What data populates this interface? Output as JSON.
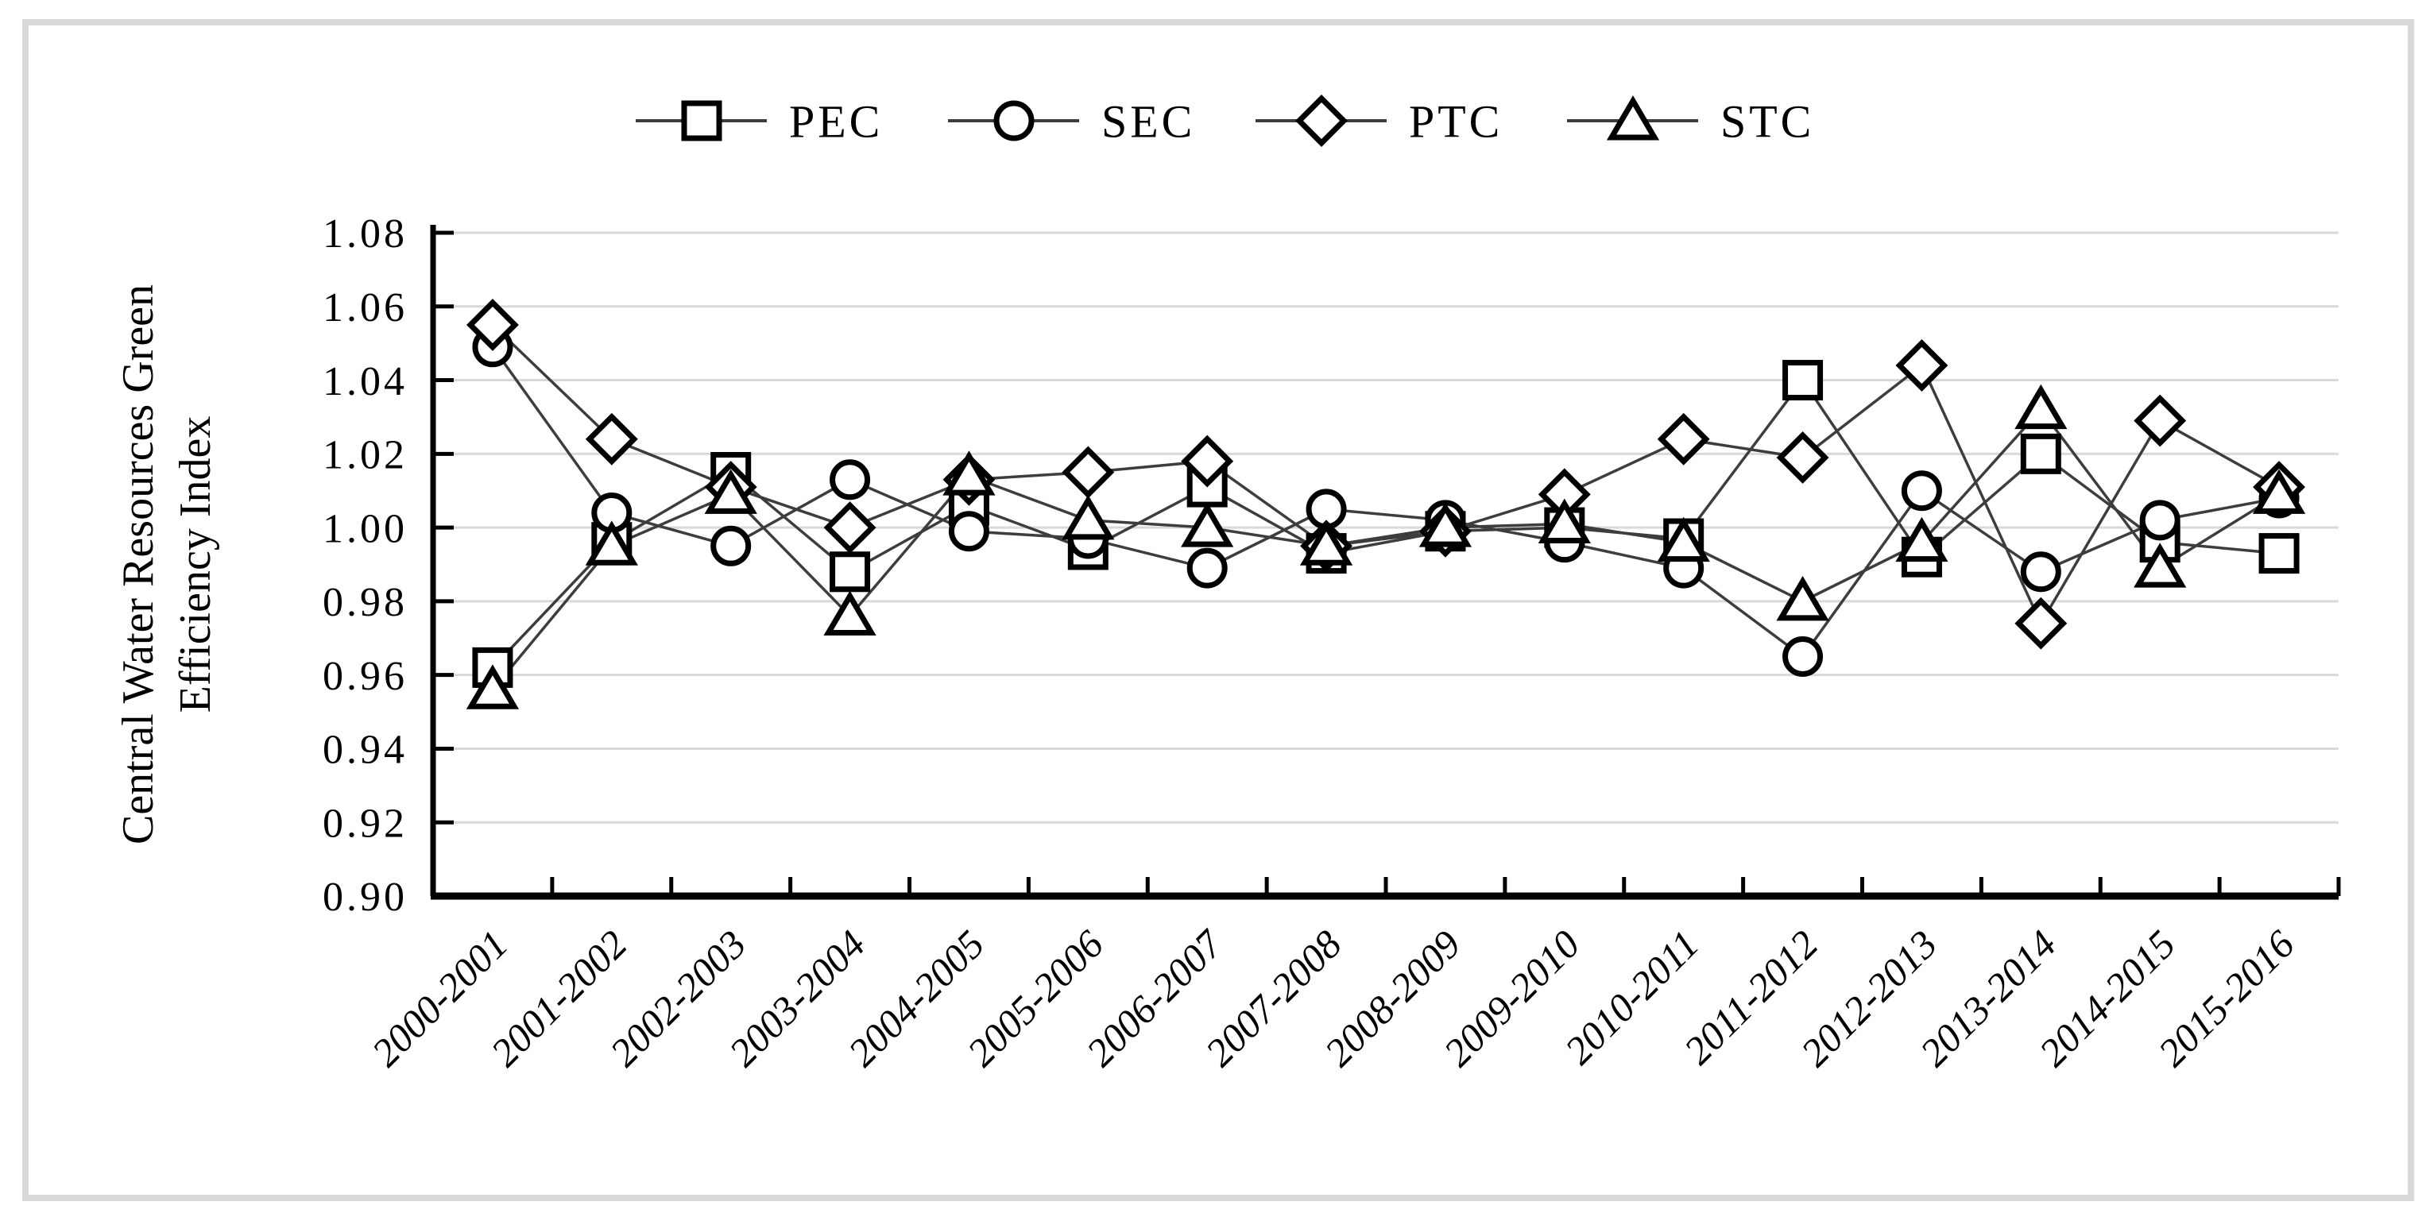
{
  "figure": {
    "background_color": "#ffffff",
    "border_color": "#d9d9d9"
  },
  "chart_data": {
    "type": "line",
    "title": "",
    "categories": [
      "2000-2001",
      "2001-2002",
      "2002-2003",
      "2003-2004",
      "2004-2005",
      "2005-2006",
      "2006-2007",
      "2007-2008",
      "2008-2009",
      "2009-2010",
      "2010-2011",
      "2011-2012",
      "2012-2013",
      "2013-2014",
      "2014-2015",
      "2015-2016"
    ],
    "series": [
      {
        "name": "PEC",
        "marker": "square",
        "values": [
          0.962,
          0.996,
          1.015,
          0.988,
          1.006,
          0.994,
          1.011,
          0.993,
          0.999,
          1.0,
          0.997,
          1.04,
          0.992,
          1.02,
          0.996,
          0.993
        ]
      },
      {
        "name": "SEC",
        "marker": "circle",
        "values": [
          1.049,
          1.004,
          0.995,
          1.013,
          0.999,
          0.997,
          0.989,
          1.005,
          1.002,
          0.996,
          0.989,
          0.965,
          1.01,
          0.988,
          1.002,
          1.008
        ]
      },
      {
        "name": "PTC",
        "marker": "diamond",
        "values": [
          1.055,
          1.024,
          1.011,
          1.0,
          1.013,
          1.015,
          1.018,
          0.995,
          0.999,
          1.009,
          1.024,
          1.019,
          1.044,
          0.974,
          1.029,
          1.011
        ]
      },
      {
        "name": "STC",
        "marker": "triangle",
        "values": [
          0.956,
          0.995,
          1.009,
          0.976,
          1.014,
          1.002,
          1.0,
          0.995,
          1.0,
          1.001,
          0.996,
          0.98,
          0.996,
          1.032,
          0.989,
          1.009
        ]
      }
    ],
    "ylabel_line1": "Central Water Resources Green",
    "ylabel_line2": "Efficiency  Index",
    "xlabel": "",
    "ylim": [
      0.9,
      1.08
    ],
    "ytick_labels": [
      "1.08",
      "1.06",
      "1.04",
      "1.02",
      "1.00",
      "0.98",
      "0.96",
      "0.94",
      "0.92",
      "0.90"
    ],
    "grid": "horizontal",
    "legend_position": "top-center",
    "line_color": "#3d3d3d",
    "marker_color": "#000000",
    "grid_color": "#d9d9d9",
    "text_color": "#000000"
  }
}
